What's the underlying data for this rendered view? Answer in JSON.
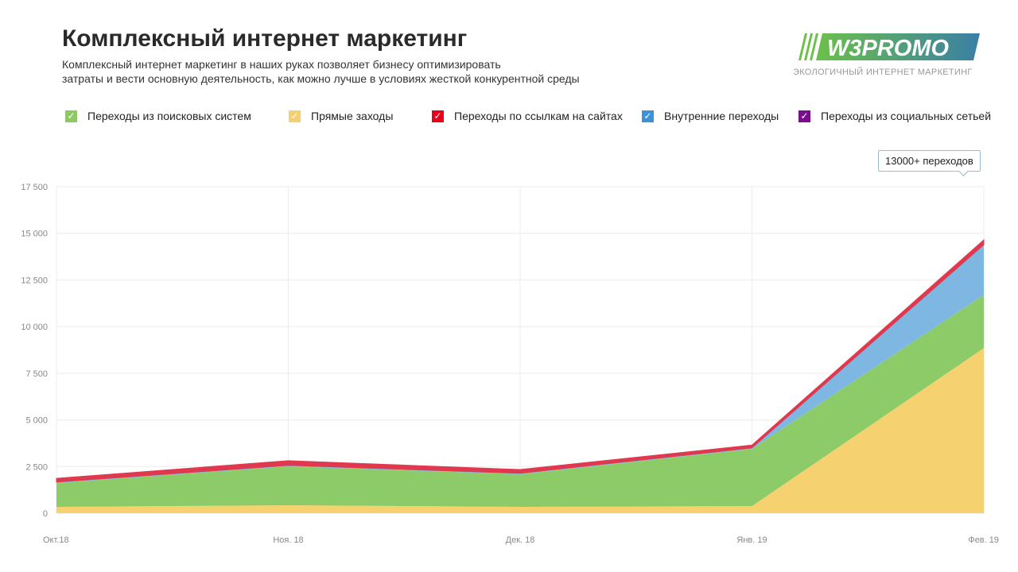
{
  "header": {
    "title": "Комплексный интернет маркетинг",
    "subtitle_line1": "Комплексный интернет маркетинг в наших руках позволяет бизнесу оптимизировать",
    "subtitle_line2": "затраты и вести основную деятельность, как можно лучше в условиях жесткой конкурентной среды"
  },
  "logo": {
    "text": "W3PROMO",
    "tagline": "ЭКОЛОГИЧНЫЙ ИНТЕРНЕТ МАРКЕТИНГ"
  },
  "tooltip": "13000+ переходов",
  "legend": [
    {
      "label": "Переходы из поисковых систем",
      "color": "#8cc866",
      "checked": true
    },
    {
      "label": "Прямые заходы",
      "color": "#f5d06f",
      "checked": true
    },
    {
      "label": "Переходы по ссылкам на сайтах",
      "color": "#e8001c",
      "checked": true
    },
    {
      "label": "Внутренние переходы",
      "color": "#3a92d8",
      "checked": true
    },
    {
      "label": "Переходы из социальных сетьей",
      "color": "#7a0e8c",
      "checked": true
    }
  ],
  "chart_data": {
    "type": "area",
    "stacked": true,
    "categories": [
      "Окт.18",
      "Ноя. 18",
      "Дек. 18",
      "Янв. 19",
      "Фев. 19"
    ],
    "ylim": [
      0,
      17500
    ],
    "yticks": [
      "0",
      "2 500",
      "5 000",
      "7 500",
      "10 000",
      "12 500",
      "15 000",
      "17 500"
    ],
    "ytick_values": [
      0,
      2500,
      5000,
      7500,
      10000,
      12500,
      15000,
      17500
    ],
    "grid": true,
    "legend_position": "top",
    "series": [
      {
        "name": "Прямые заходы",
        "color": "#f5d16f",
        "values": [
          340,
          425,
          340,
          380,
          8850
        ]
      },
      {
        "name": "Переходы из поисковых систем",
        "color": "#8ccb68",
        "values": [
          1280,
          2090,
          1750,
          3070,
          2850
        ]
      },
      {
        "name": "Внутренние переходы",
        "color": "#7db7e2",
        "values": [
          50,
          50,
          50,
          50,
          2690
        ]
      },
      {
        "name": "Переходы по ссылкам на сайтах",
        "color": "#e0384f",
        "values": [
          200,
          250,
          200,
          150,
          260
        ]
      },
      {
        "name": "Переходы из социальных сетьей",
        "color": "#7a0e8c",
        "values": [
          0,
          0,
          0,
          0,
          0
        ]
      }
    ]
  }
}
